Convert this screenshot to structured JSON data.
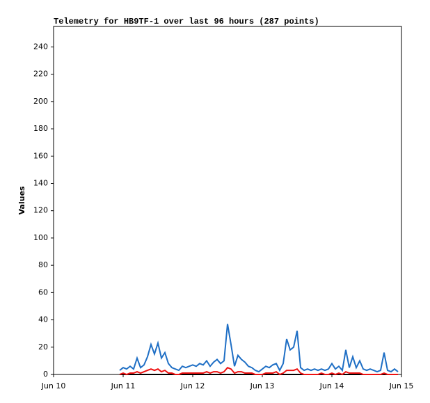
{
  "chart_data": {
    "type": "line",
    "title": "Telemetry for HB9TF-1 over last 96 hours (287 points)",
    "y_label": "Values",
    "x": [
      10.95,
      11.0,
      11.05,
      11.1,
      11.15,
      11.2,
      11.25,
      11.3,
      11.35,
      11.4,
      11.45,
      11.5,
      11.55,
      11.6,
      11.65,
      11.7,
      11.75,
      11.8,
      11.85,
      11.9,
      11.95,
      12.0,
      12.05,
      12.1,
      12.15,
      12.2,
      12.25,
      12.3,
      12.35,
      12.4,
      12.45,
      12.5,
      12.55,
      12.6,
      12.65,
      12.7,
      12.75,
      12.8,
      12.85,
      12.9,
      12.95,
      13.0,
      13.05,
      13.1,
      13.15,
      13.2,
      13.25,
      13.3,
      13.35,
      13.4,
      13.45,
      13.5,
      13.55,
      13.6,
      13.65,
      13.7,
      13.75,
      13.8,
      13.85,
      13.9,
      13.95,
      14.0,
      14.05,
      14.1,
      14.15,
      14.2,
      14.25,
      14.3,
      14.35,
      14.4,
      14.45,
      14.5,
      14.55,
      14.6,
      14.65,
      14.7,
      14.75,
      14.8,
      14.85,
      14.9,
      14.95
    ],
    "series": [
      {
        "color": "#1f6fc5",
        "values": [
          3,
          5,
          4,
          6,
          4,
          12,
          5,
          7,
          13,
          22,
          15,
          23,
          12,
          16,
          8,
          5,
          4,
          3,
          6,
          5,
          6,
          7,
          6,
          8,
          7,
          10,
          6,
          9,
          11,
          8,
          10,
          37,
          22,
          6,
          14,
          11,
          9,
          6,
          5,
          3,
          2,
          4,
          6,
          5,
          7,
          8,
          3,
          8,
          26,
          18,
          20,
          32,
          5,
          3,
          4,
          3,
          4,
          3,
          4,
          3,
          4,
          8,
          4,
          6,
          3,
          18,
          5,
          13,
          5,
          10,
          4,
          3,
          4,
          3,
          2,
          3,
          16,
          3,
          2,
          4,
          2
        ]
      },
      {
        "color": "#ee1111",
        "values": [
          0,
          1,
          0,
          1,
          1,
          2,
          1,
          2,
          3,
          4,
          3,
          4,
          2,
          3,
          1,
          1,
          0,
          0,
          1,
          1,
          1,
          1,
          1,
          1,
          1,
          2,
          1,
          2,
          2,
          1,
          2,
          5,
          4,
          1,
          2,
          2,
          1,
          1,
          1,
          0,
          0,
          0,
          1,
          1,
          1,
          2,
          0,
          1,
          3,
          3,
          3,
          4,
          1,
          0,
          0,
          0,
          0,
          0,
          1,
          0,
          0,
          1,
          0,
          1,
          0,
          2,
          1,
          1,
          1,
          1,
          0,
          0,
          0,
          0,
          0,
          0,
          1,
          0,
          0,
          0,
          0
        ]
      },
      {
        "color": "#000000",
        "values": [
          0,
          0,
          0,
          0,
          0,
          0,
          0,
          0,
          0,
          0,
          0,
          0,
          0,
          0,
          0,
          0,
          0,
          0,
          0,
          0,
          0,
          0,
          0,
          0,
          0,
          0,
          0,
          0,
          0,
          0,
          0,
          0,
          0,
          0,
          0,
          0,
          0,
          0,
          0,
          0,
          0,
          0,
          0,
          0,
          0,
          0,
          0,
          0,
          0,
          0,
          0,
          0,
          0,
          0,
          0,
          0,
          0,
          0,
          0,
          0,
          0,
          0,
          0,
          0,
          0,
          0,
          0,
          0,
          0,
          0,
          0,
          0,
          0,
          0,
          0,
          0,
          0,
          0,
          0,
          0,
          0
        ]
      }
    ],
    "xlim": [
      10,
      15
    ],
    "xticks": [
      {
        "value": 10,
        "label": "Jun 10"
      },
      {
        "value": 11,
        "label": "Jun 11"
      },
      {
        "value": 12,
        "label": "Jun 12"
      },
      {
        "value": 13,
        "label": "Jun 13"
      },
      {
        "value": 14,
        "label": "Jun 14"
      },
      {
        "value": 15,
        "label": "Jun 15"
      }
    ],
    "ylim": [
      0,
      255
    ],
    "yticks": [
      0,
      20,
      40,
      60,
      80,
      100,
      120,
      140,
      160,
      180,
      200,
      220,
      240
    ]
  }
}
